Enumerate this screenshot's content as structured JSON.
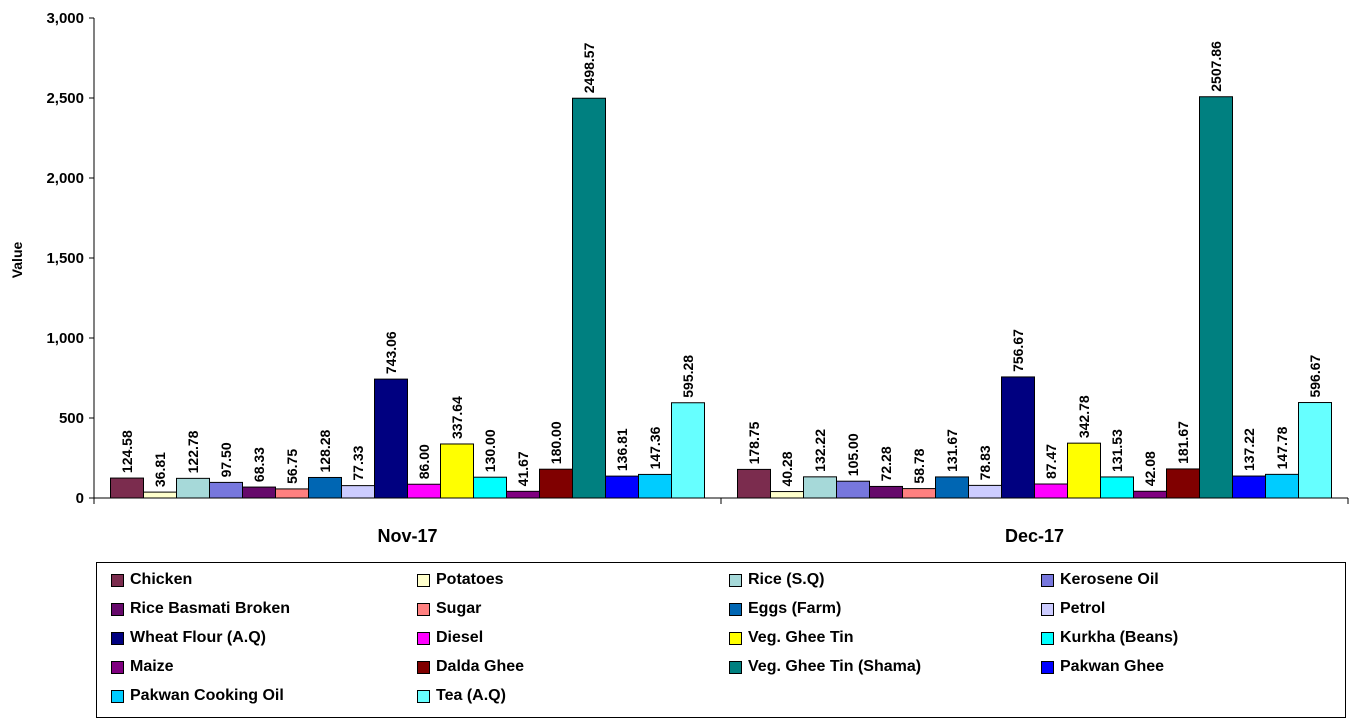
{
  "chart_data": {
    "type": "bar",
    "ylabel": "Value",
    "xlabel": "",
    "ylim": [
      0,
      3000
    ],
    "yticks": [
      "0",
      "500",
      "1,000",
      "1,500",
      "2,000",
      "2,500",
      "3,000"
    ],
    "grid": false,
    "legend_position": "bottom",
    "categories": [
      "Nov-17",
      "Dec-17"
    ],
    "series": [
      {
        "name": "Chicken",
        "color": "#7b2c4e",
        "values": [
          124.58,
          178.75
        ],
        "labels": [
          "124.58",
          "178.75"
        ]
      },
      {
        "name": "Potatoes",
        "color": "#ffffcc",
        "values": [
          36.81,
          40.28
        ],
        "labels": [
          "36.81",
          "40.28"
        ]
      },
      {
        "name": "Rice (S.Q)",
        "color": "#a6d9d9",
        "values": [
          122.78,
          132.22
        ],
        "labels": [
          "122.78",
          "132.22"
        ]
      },
      {
        "name": "Kerosene Oil",
        "color": "#7777dd",
        "values": [
          97.5,
          105.0
        ],
        "labels": [
          "97.50",
          "105.00"
        ]
      },
      {
        "name": "Rice Basmati Broken",
        "color": "#66096b",
        "values": [
          68.33,
          72.28
        ],
        "labels": [
          "68.33",
          "72.28"
        ]
      },
      {
        "name": "Sugar",
        "color": "#ff8080",
        "values": [
          56.75,
          58.78
        ],
        "labels": [
          "56.75",
          "58.78"
        ]
      },
      {
        "name": "Eggs (Farm)",
        "color": "#0066b3",
        "values": [
          128.28,
          131.67
        ],
        "labels": [
          "128.28",
          "131.67"
        ]
      },
      {
        "name": "Petrol",
        "color": "#ccccff",
        "values": [
          77.33,
          78.83
        ],
        "labels": [
          "77.33",
          "78.83"
        ]
      },
      {
        "name": "Wheat Flour (A.Q)",
        "color": "#000080",
        "values": [
          743.06,
          756.67
        ],
        "labels": [
          "743.06",
          "756.67"
        ]
      },
      {
        "name": "Diesel",
        "color": "#ff00ff",
        "values": [
          86.0,
          87.47
        ],
        "labels": [
          "86.00",
          "87.47"
        ]
      },
      {
        "name": "Veg. Ghee Tin",
        "color": "#ffff00",
        "values": [
          337.64,
          342.78
        ],
        "labels": [
          "337.64",
          "342.78"
        ]
      },
      {
        "name": "Kurkha (Beans)",
        "color": "#00ffff",
        "values": [
          130.0,
          131.53
        ],
        "labels": [
          "130.00",
          "131.53"
        ]
      },
      {
        "name": "Maize",
        "color": "#800080",
        "values": [
          41.67,
          42.08
        ],
        "labels": [
          "41.67",
          "42.08"
        ]
      },
      {
        "name": "Dalda Ghee",
        "color": "#800000",
        "values": [
          180.0,
          181.67
        ],
        "labels": [
          "180.00",
          "181.67"
        ]
      },
      {
        "name": "Veg. Ghee Tin (Shama)",
        "color": "#008080",
        "values": [
          2498.57,
          2507.86
        ],
        "labels": [
          "2498.57",
          "2507.86"
        ]
      },
      {
        "name": "Pakwan Ghee",
        "color": "#0000ff",
        "values": [
          136.81,
          137.22
        ],
        "labels": [
          "136.81",
          "137.22"
        ]
      },
      {
        "name": "Pakwan Cooking Oil",
        "color": "#00ccff",
        "values": [
          147.36,
          147.78
        ],
        "labels": [
          "147.36",
          "147.78"
        ]
      },
      {
        "name": "Tea (A.Q)",
        "color": "#66ffff",
        "values": [
          595.28,
          596.67
        ],
        "labels": [
          "595.28",
          "596.67"
        ]
      }
    ]
  }
}
